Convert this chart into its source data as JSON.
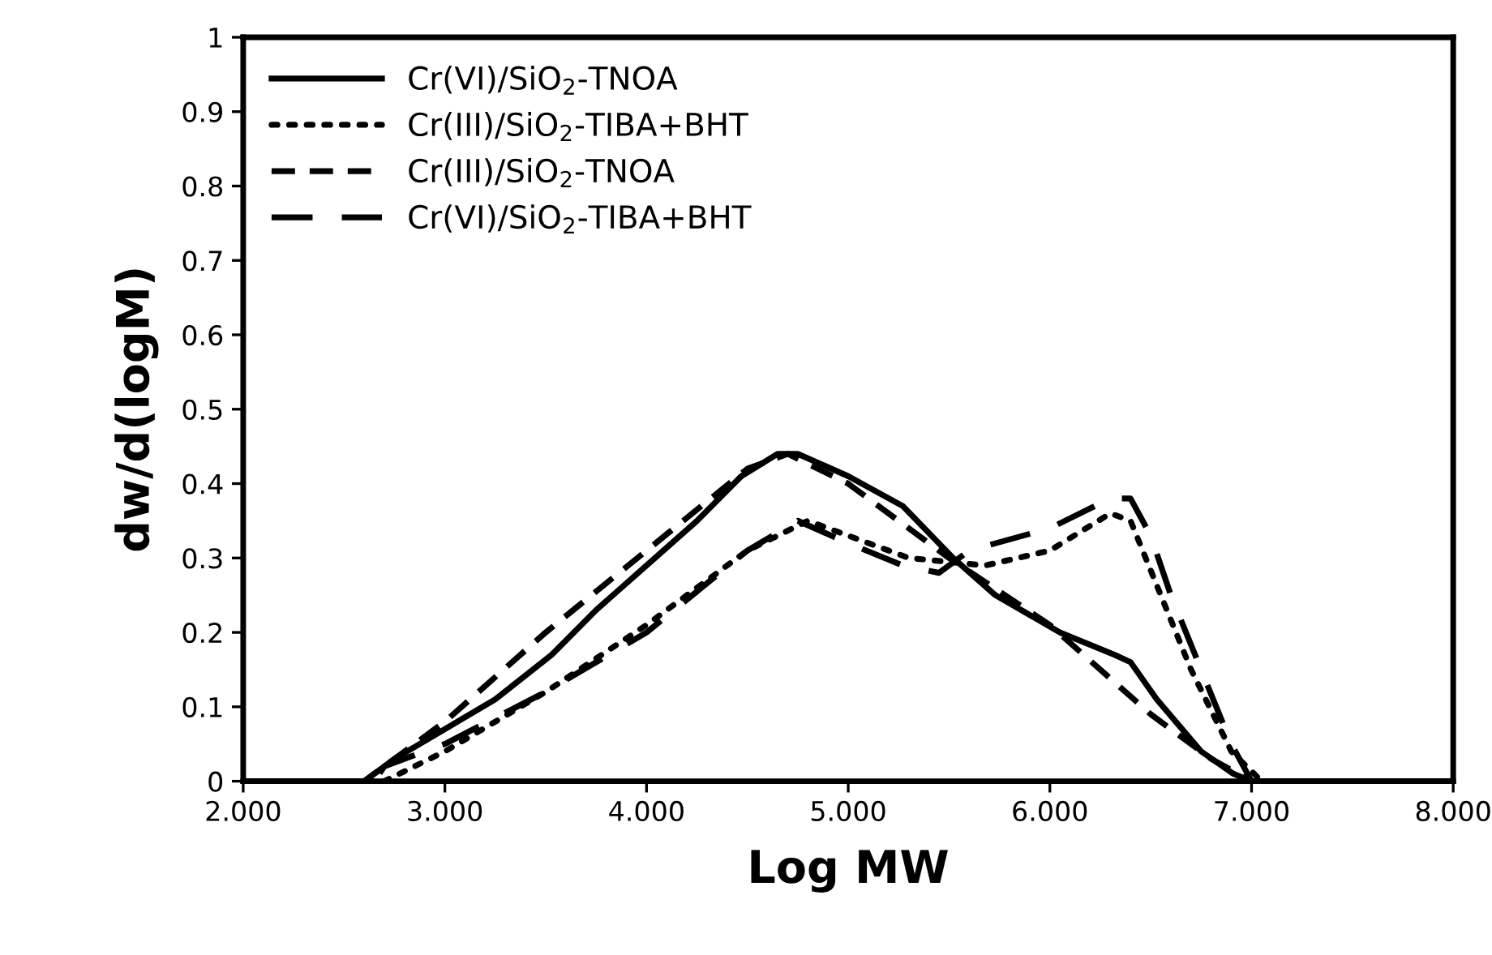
{
  "chart_data": {
    "type": "line",
    "xlabel": "Log MW",
    "ylabel": "dw/d(logM)",
    "xlim": [
      2,
      8
    ],
    "ylim": [
      0,
      1
    ],
    "xticks": [
      {
        "value": 2,
        "label": "2.000"
      },
      {
        "value": 3,
        "label": "3.000"
      },
      {
        "value": 4,
        "label": "4.000"
      },
      {
        "value": 5,
        "label": "5.000"
      },
      {
        "value": 6,
        "label": "6.000"
      },
      {
        "value": 7,
        "label": "7.000"
      },
      {
        "value": 8,
        "label": "8.000"
      }
    ],
    "yticks": [
      0,
      0.1,
      0.2,
      0.3,
      0.4,
      0.5,
      0.6,
      0.7,
      0.8,
      0.9,
      1
    ],
    "grid": false,
    "legend": "top left",
    "marker": "none",
    "series": [
      {
        "name": "Cr(VI)/SiO$_{2}$-TNOA",
        "color": "#000000",
        "line_style": "solid",
        "x": [
          2,
          2.6,
          2.75,
          3,
          3.25,
          3.53,
          3.75,
          4,
          4.25,
          4.47,
          4.65,
          4.75,
          5,
          5.27,
          5.52,
          5.73,
          6.05,
          6.32,
          6.4,
          6.53,
          6.75,
          6.91,
          7,
          8
        ],
        "values": [
          0,
          0,
          0.03,
          0.07,
          0.11,
          0.17,
          0.23,
          0.29,
          0.35,
          0.41,
          0.44,
          0.44,
          0.41,
          0.37,
          0.3,
          0.25,
          0.2,
          0.17,
          0.16,
          0.11,
          0.04,
          0.01,
          0,
          0
        ]
      },
      {
        "name": "Cr(III)/SiO$_{2}$-TIBA+BHT",
        "color": "#000000",
        "line_style": "dotted",
        "x": [
          2,
          2.7,
          3,
          3.5,
          4,
          4.5,
          4.8,
          5,
          5.3,
          5.68,
          6,
          6.3,
          6.4,
          6.55,
          6.7,
          6.9,
          7.05,
          8
        ],
        "values": [
          0,
          0,
          0.04,
          0.12,
          0.21,
          0.31,
          0.35,
          0.33,
          0.3,
          0.29,
          0.31,
          0.36,
          0.35,
          0.25,
          0.15,
          0.04,
          0,
          0
        ]
      },
      {
        "name": "Cr(III)/SiO$_{2}$-TNOA",
        "color": "#000000",
        "line_style": "dashed",
        "x": [
          2,
          2.6,
          2.75,
          3,
          3.5,
          4,
          4.5,
          4.7,
          5,
          5.5,
          6,
          6.5,
          6.8,
          7,
          8
        ],
        "values": [
          0,
          0,
          0.03,
          0.08,
          0.2,
          0.31,
          0.42,
          0.44,
          0.4,
          0.3,
          0.21,
          0.09,
          0.03,
          0,
          0
        ]
      },
      {
        "name": "Cr(VI)/SiO$_{2}$-TIBA+BHT",
        "color": "#000000",
        "line_style": "longdash",
        "x": [
          2,
          2.65,
          2.7,
          3,
          3.5,
          4,
          4.5,
          4.75,
          5,
          5.27,
          5.45,
          5.6,
          6,
          6.3,
          6.4,
          6.5,
          6.6,
          6.75,
          6.9,
          7,
          8
        ],
        "values": [
          0,
          0,
          0.02,
          0.05,
          0.12,
          0.2,
          0.31,
          0.35,
          0.32,
          0.29,
          0.28,
          0.31,
          0.34,
          0.38,
          0.38,
          0.33,
          0.25,
          0.15,
          0.05,
          0,
          0
        ]
      }
    ]
  }
}
